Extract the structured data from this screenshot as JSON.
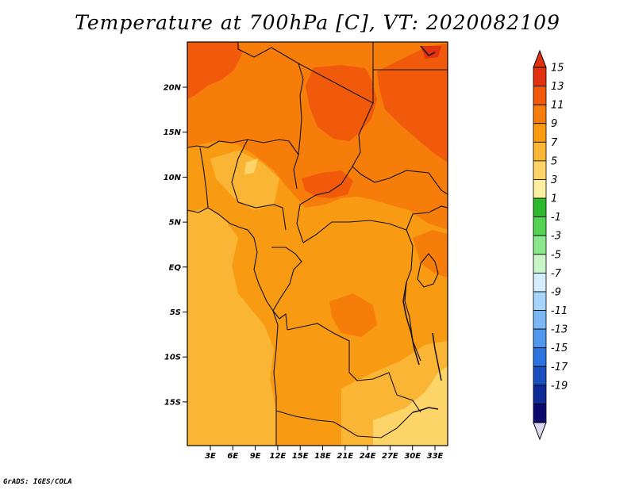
{
  "title": "Temperature at 700hPa [C], VT: 2020082109",
  "credit": "GrADS: IGES/COLA",
  "map": {
    "lat_labels": [
      "20N",
      "15N",
      "10N",
      "5N",
      "EQ",
      "5S",
      "10S",
      "15S"
    ],
    "lon_labels": [
      "3E",
      "6E",
      "9E",
      "12E",
      "15E",
      "18E",
      "21E",
      "24E",
      "27E",
      "30E",
      "33E"
    ],
    "field": "Temperature at 700hPa",
    "units": "C",
    "valid_time": "2020082109"
  },
  "colorbar": {
    "levels": [
      "15",
      "13",
      "11",
      "9",
      "7",
      "5",
      "3",
      "1",
      "-1",
      "-3",
      "-5",
      "-7",
      "-9",
      "-11",
      "-13",
      "-15",
      "-17",
      "-19"
    ],
    "colors": [
      "#e0320f",
      "#f05a0a",
      "#f77d0a",
      "#f99b12",
      "#fbb535",
      "#fdd468",
      "#fcf0a0",
      "#2eb82e",
      "#52d452",
      "#8ce88c",
      "#c8f5c8",
      "#d4ecfc",
      "#a6d4fa",
      "#7ab8f5",
      "#4f98ee",
      "#2c73e0",
      "#1a4fc0",
      "#0d2a96",
      "#0a0a6e"
    ],
    "top_arrow_color": "#e0320f",
    "bottom_arrow_color": "#dcd7f0"
  }
}
